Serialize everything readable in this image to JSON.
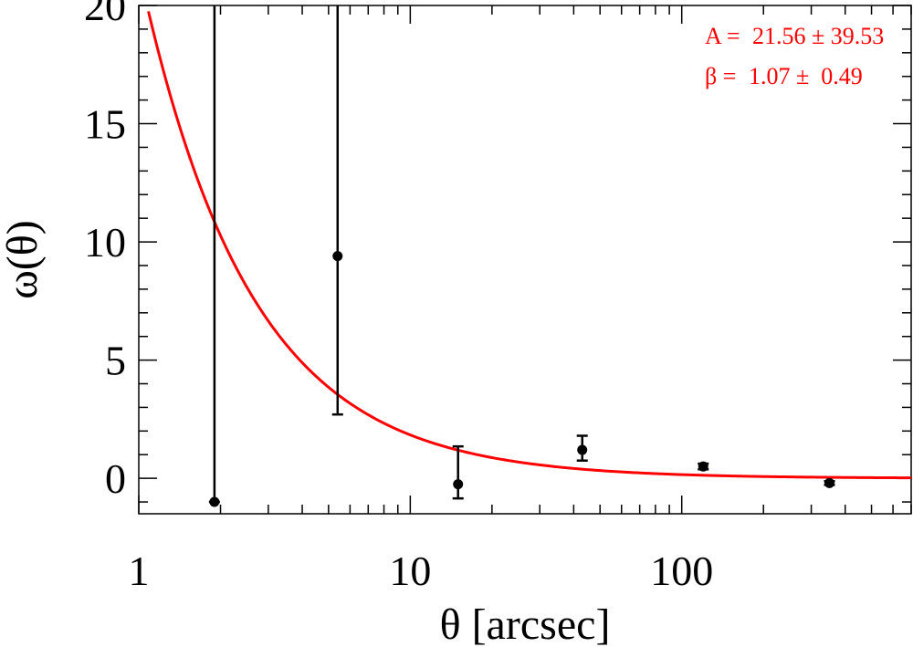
{
  "chart_data": {
    "type": "scatter",
    "title": "",
    "xlabel": "θ  [arcsec]",
    "ylabel": "ω(θ)",
    "xscale": "log",
    "xlim": [
      1,
      700
    ],
    "ylim": [
      -1.5,
      20
    ],
    "grid": false,
    "x_ticks": [
      {
        "value": 1,
        "label": "1"
      },
      {
        "value": 10,
        "label": "10"
      },
      {
        "value": 100,
        "label": "100"
      }
    ],
    "y_ticks": [
      {
        "value": 0,
        "label": "0"
      },
      {
        "value": 5,
        "label": "5"
      },
      {
        "value": 10,
        "label": "10"
      },
      {
        "value": 15,
        "label": "15"
      },
      {
        "value": 20,
        "label": "20"
      }
    ],
    "points": [
      {
        "x": 1.9,
        "y": -1.0,
        "err_low": -1.0,
        "err_high": 20.5
      },
      {
        "x": 5.4,
        "y": 9.4,
        "err_low": 2.7,
        "err_high": 20.5
      },
      {
        "x": 15,
        "y": -0.25,
        "err_low": -0.85,
        "err_high": 1.35
      },
      {
        "x": 43,
        "y": 1.2,
        "err_low": 0.75,
        "err_high": 1.8
      },
      {
        "x": 120,
        "y": 0.5,
        "err_low": 0.38,
        "err_high": 0.62
      },
      {
        "x": 350,
        "y": -0.2,
        "err_low": -0.28,
        "err_high": -0.12
      }
    ],
    "fit": {
      "model": "A * x^(-beta)",
      "A": 21.56,
      "beta": 1.07,
      "color": "#ff0000"
    },
    "annotations": [
      {
        "label": "A =",
        "value": "21.56 ± 39.53"
      },
      {
        "label": "β =",
        "value": "1.07 ±  0.49"
      }
    ],
    "colors": {
      "points": "#000000",
      "fit": "#ff0000",
      "annotation": "#ff0000"
    }
  }
}
